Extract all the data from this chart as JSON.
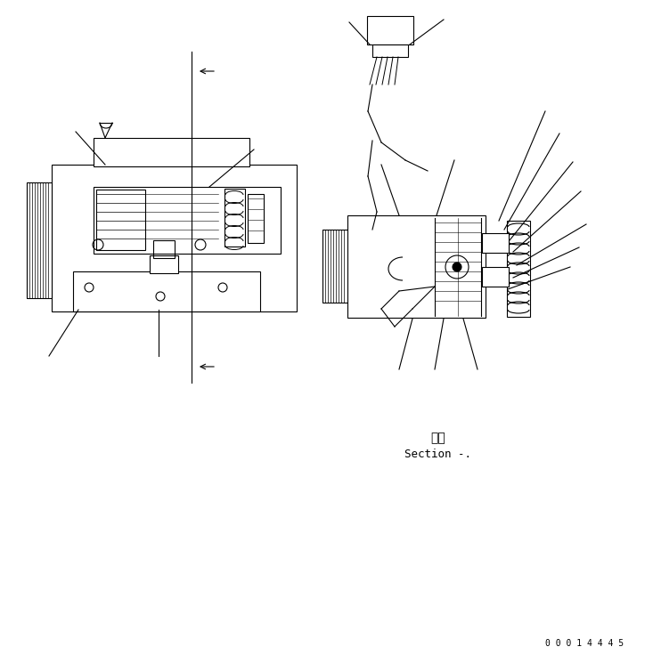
{
  "bg_color": "#ffffff",
  "line_color": "#000000",
  "text_section_ja": "断面",
  "text_section_en": "Section -.",
  "watermark": "0 0 0 1 4 4 4 5",
  "fig_width": 7.33,
  "fig_height": 7.45
}
